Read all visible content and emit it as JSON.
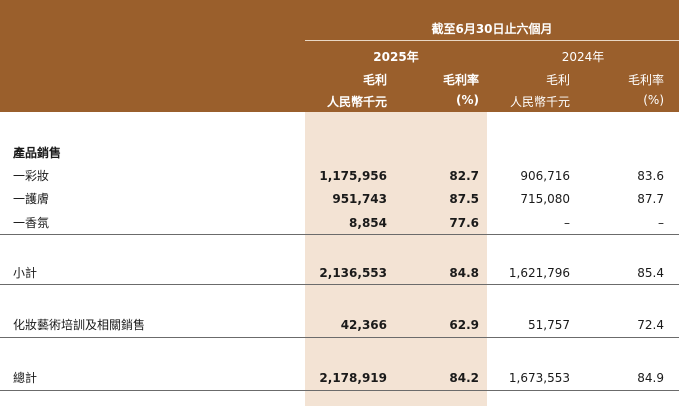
{
  "header": {
    "period": "截至6月30日止六個月",
    "year_current": "2025年",
    "year_prior": "2024年",
    "col_gross_profit": "毛利",
    "col_gross_margin": "毛利率",
    "unit_gross_profit": "人民幣千元",
    "unit_gross_margin": "(%)"
  },
  "sections": {
    "product_sales": "產品銷售"
  },
  "rows": [
    {
      "label": "一彩妝",
      "gp_2025": "1,175,956",
      "gm_2025": "82.7",
      "gp_2024": "906,716",
      "gm_2024": "83.6"
    },
    {
      "label": "一護膚",
      "gp_2025": "951,743",
      "gm_2025": "87.5",
      "gp_2024": "715,080",
      "gm_2024": "87.7"
    },
    {
      "label": "一香氛",
      "gp_2025": "8,854",
      "gm_2025": "77.6",
      "gp_2024": "–",
      "gm_2024": "–"
    }
  ],
  "subtotal": {
    "label": "小計",
    "gp_2025": "2,136,553",
    "gm_2025": "84.8",
    "gp_2024": "1,621,796",
    "gm_2024": "85.4"
  },
  "training": {
    "label": "化妝藝術培訓及相關銷售",
    "gp_2025": "42,366",
    "gm_2025": "62.9",
    "gp_2024": "51,757",
    "gm_2024": "72.4"
  },
  "total": {
    "label": "總計",
    "gp_2025": "2,178,919",
    "gm_2025": "84.2",
    "gp_2024": "1,673,553",
    "gm_2024": "84.9"
  },
  "colors": {
    "header_bg": "#9a5f2c",
    "highlight_col": "#f3e3d4"
  }
}
